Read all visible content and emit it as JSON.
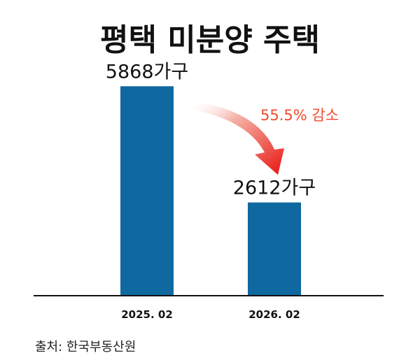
{
  "chart_data": {
    "type": "bar",
    "title": "평택 미분양 주택",
    "categories": [
      "2025. 02",
      "2026. 02"
    ],
    "values": [
      5868,
      2612
    ],
    "value_labels": [
      "5868가구",
      "2612가구"
    ],
    "bar_color": "#0f68a0",
    "ylim": [
      0,
      6600
    ],
    "annotation": {
      "text": "55.5% 감소",
      "color": "#f04a2e"
    },
    "source": "출처: 한국부동산원"
  }
}
